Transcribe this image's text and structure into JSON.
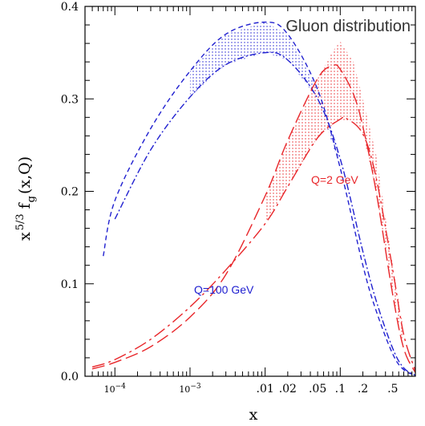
{
  "chart_data": {
    "type": "line",
    "title": "Gluon distribution",
    "xlabel": "x",
    "ylabel": "x 5/3 f g (x,Q)",
    "ylabel_parts": {
      "main": "x",
      "pow": "5/3",
      "f": "f",
      "sub": "g",
      "args": "(x,Q)"
    },
    "x_scale": "log",
    "xlim": [
      4e-05,
      1
    ],
    "ylim": [
      0,
      0.4
    ],
    "y_ticks": [
      0.0,
      0.1,
      0.2,
      0.3,
      0.4
    ],
    "y_tick_labels": [
      "0.0",
      "0.1",
      "0.2",
      "0.3",
      "0.4"
    ],
    "x_tick_labels": [
      {
        "value": 0.0001,
        "label": "10",
        "exp": "−4"
      },
      {
        "value": 0.001,
        "label": "10",
        "exp": "−3"
      },
      {
        "value": 0.01,
        "label": ".01"
      },
      {
        "value": 0.02,
        "label": ".02"
      },
      {
        "value": 0.05,
        "label": ".05"
      },
      {
        "value": 0.1,
        "label": ".1"
      },
      {
        "value": 0.2,
        "label": ".2"
      },
      {
        "value": 0.5,
        "label": ".5"
      }
    ],
    "annotations": [
      {
        "text": "Q=2 GeV",
        "color": "#e8262a"
      },
      {
        "text": "Q=100 GeV",
        "color": "#2020d0"
      }
    ],
    "series": [
      {
        "group": "Q=100 GeV",
        "color": "#2020d0",
        "dash": "6,4",
        "x": [
          7e-05,
          0.0001,
          0.0003,
          0.001,
          0.003,
          0.01,
          0.02,
          0.05,
          0.1,
          0.2,
          0.3,
          0.5,
          0.7,
          1.0
        ],
        "y": [
          0.13,
          0.19,
          0.268,
          0.33,
          0.37,
          0.383,
          0.37,
          0.31,
          0.225,
          0.12,
          0.071,
          0.024,
          0.007,
          0.001
        ]
      },
      {
        "group": "Q=100 GeV",
        "color": "#2020d0",
        "dash": "8,3,2,3",
        "x": [
          0.0001,
          0.0003,
          0.001,
          0.003,
          0.01,
          0.02,
          0.05,
          0.1,
          0.2,
          0.3,
          0.5,
          0.7,
          1.0
        ],
        "y": [
          0.17,
          0.245,
          0.302,
          0.337,
          0.35,
          0.342,
          0.3,
          0.235,
          0.135,
          0.082,
          0.03,
          0.009,
          0.001
        ]
      },
      {
        "group": "Q=2 GeV",
        "color": "#e8262a",
        "dash": "16,6",
        "x": [
          5e-05,
          0.0001,
          0.0003,
          0.001,
          0.003,
          0.01,
          0.02,
          0.05,
          0.08,
          0.1,
          0.15,
          0.2,
          0.3,
          0.5,
          0.7,
          1.0
        ],
        "y": [
          0.008,
          0.015,
          0.032,
          0.064,
          0.11,
          0.195,
          0.255,
          0.322,
          0.336,
          0.332,
          0.305,
          0.27,
          0.2,
          0.088,
          0.03,
          0.004
        ]
      },
      {
        "group": "Q=2 GeV",
        "color": "#e8262a",
        "dash": "16,5,3,5",
        "x": [
          5e-05,
          0.0001,
          0.0003,
          0.001,
          0.003,
          0.01,
          0.02,
          0.05,
          0.1,
          0.12,
          0.2,
          0.3,
          0.5,
          0.7,
          1.0
        ],
        "y": [
          0.01,
          0.018,
          0.04,
          0.075,
          0.115,
          0.165,
          0.205,
          0.258,
          0.278,
          0.279,
          0.262,
          0.215,
          0.115,
          0.045,
          0.006
        ]
      }
    ],
    "bands": [
      {
        "group": "Q=100 GeV",
        "color": "#2020d0",
        "x": [
          0.001,
          0.003,
          0.01,
          0.02,
          0.05,
          0.1
        ],
        "lower": [
          0.302,
          0.337,
          0.35,
          0.342,
          0.3,
          0.225
        ],
        "upper": [
          0.33,
          0.37,
          0.383,
          0.37,
          0.31,
          0.235
        ]
      },
      {
        "group": "Q=2 GeV",
        "color": "#e8262a",
        "x": [
          0.01,
          0.02,
          0.05,
          0.08,
          0.1,
          0.15,
          0.2,
          0.3,
          0.5,
          0.7
        ],
        "lower": [
          0.165,
          0.205,
          0.258,
          0.272,
          0.278,
          0.275,
          0.262,
          0.2,
          0.088,
          0.03
        ],
        "upper": [
          0.195,
          0.255,
          0.322,
          0.352,
          0.362,
          0.34,
          0.3,
          0.24,
          0.12,
          0.05
        ]
      }
    ]
  }
}
